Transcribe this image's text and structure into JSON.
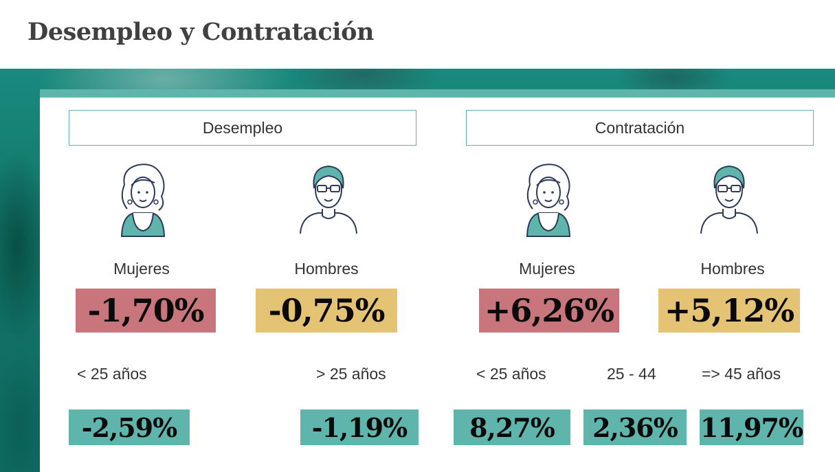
{
  "title": "Desempleo y Contratación",
  "colors": {
    "accent": "#5fb5ab",
    "women_value_bg": "#c9757c",
    "men_value_bg": "#e4c474",
    "age_value_bg": "#5fb5ab",
    "backdrop": "#127569"
  },
  "desempleo": {
    "heading": "Desempleo",
    "mujeres": {
      "icon": "woman-avatar-icon",
      "label": "Mujeres",
      "value": "-1,70%"
    },
    "hombres": {
      "icon": "man-avatar-icon",
      "label": "Hombres",
      "value": "-0,75%"
    },
    "age_groups": [
      {
        "label": "< 25 años",
        "value": "-2,59%"
      },
      {
        "label": "> 25 años",
        "value": "-1,19%"
      }
    ]
  },
  "contratacion": {
    "heading": "Contratación",
    "mujeres": {
      "icon": "woman-avatar-icon",
      "label": "Mujeres",
      "value": "+6,26%"
    },
    "hombres": {
      "icon": "man-avatar-icon",
      "label": "Hombres",
      "value": "+5,12%"
    },
    "age_groups": [
      {
        "label": "< 25 años",
        "value": "8,27%"
      },
      {
        "label": "25 - 44",
        "value": "2,36%"
      },
      {
        "label": "=> 45 años",
        "value": "11,97%"
      }
    ]
  }
}
